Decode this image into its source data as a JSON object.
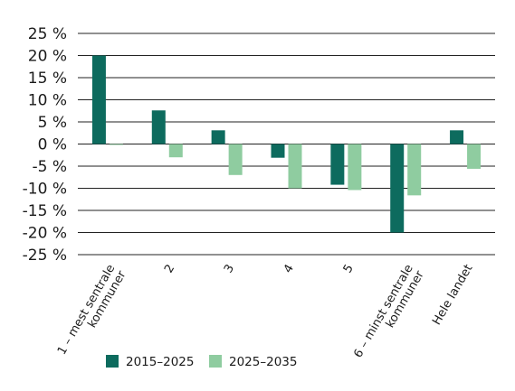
{
  "chart_data": {
    "type": "bar",
    "categories": [
      [
        "1 – mest sentrale",
        "kommuner"
      ],
      [
        "2"
      ],
      [
        "3"
      ],
      [
        "4"
      ],
      [
        "5"
      ],
      [
        "6 – minst sentrale",
        "kommuner"
      ],
      [
        "Hele landet"
      ]
    ],
    "series": [
      {
        "name": "2015–2025",
        "color": "#0d6b5e",
        "values": [
          20,
          7.6,
          3.1,
          -3.1,
          -9.2,
          -20,
          3.1
        ]
      },
      {
        "name": "2025–2035",
        "color": "#8fcca0",
        "values": [
          -0.2,
          -3.0,
          -7.0,
          -10.0,
          -10.4,
          -11.6,
          -5.6
        ]
      }
    ],
    "yticks": [
      "25 %",
      "20 %",
      "15 %",
      "10 %",
      "5 %",
      "0 %",
      "-5 %",
      "-10 %",
      "-15 %",
      "-20 %",
      "-25 %"
    ],
    "ylim": [
      -25,
      25
    ],
    "grid": true,
    "legend_position": "bottom",
    "title": "",
    "xlabel": "",
    "ylabel": ""
  }
}
